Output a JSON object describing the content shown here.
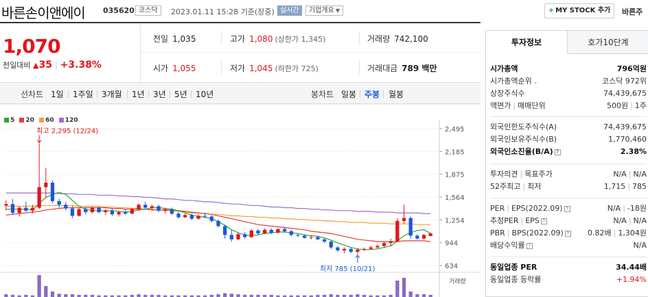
{
  "header": {
    "name": "바른손이앤에이",
    "code": "035620",
    "market": "코스닥",
    "datetime": "2023.01.11 15:28",
    "basis": "기준(장중)",
    "realtime": "실시간",
    "company_info": "기업개요",
    "mystock_button": "MY STOCK 추가",
    "cut_text": "바른주"
  },
  "price": {
    "current": "1,070",
    "diff_label": "전일대비",
    "diff_value": "35",
    "diff_rate": "+3.38%"
  },
  "quote": {
    "prev_label": "전일",
    "prev": "1,035",
    "high_label": "고가",
    "high": "1,080",
    "upper_limit": "(상한가 1,345)",
    "volume_label": "거래량",
    "volume": "742,100",
    "open_label": "시가",
    "open": "1,055",
    "low_label": "저가",
    "low": "1,045",
    "lower_limit": "(하한가 725)",
    "amount_label": "거래대금",
    "amount": "789 백만"
  },
  "chart_tabs": {
    "line_title": "선차트",
    "line_options": [
      "1일",
      "1주일",
      "3개월",
      "1년",
      "3년",
      "5년",
      "10년"
    ],
    "candle_title": "봉차트",
    "candle_options": [
      "일봉",
      "주봉",
      "월봉"
    ],
    "selected_candle": "주봉"
  },
  "side": {
    "tab_active": "투자정보",
    "tab_inactive": "호가10단계",
    "market_cap_label": "시가총액",
    "market_cap": "796억원",
    "cap_rank_label": "시가총액순위",
    "cap_rank": "코스닥 972위",
    "shares_label": "상장주식수",
    "shares": "74,439,675",
    "par_label": "액면가",
    "unit_label": "매매단위",
    "par": "500원",
    "unit": "1주",
    "foreign_limit_label": "외국인한도주식수(A)",
    "foreign_limit": "74,439,675",
    "foreign_hold_label": "외국인보유주식수(B)",
    "foreign_hold": "1,770,460",
    "foreign_rate_label": "외국인소진율(B/A)",
    "foreign_rate": "2.38%",
    "opinion_label": "투자의견",
    "target_label": "목표주가",
    "opinion": "N/A",
    "target": "N/A",
    "w52_label": "52주최고",
    "w52_low_label": "최저",
    "w52_high": "1,715",
    "w52_low": "785",
    "per_label": "PER",
    "eps_label": "EPS(2022.09)",
    "per": "N/A",
    "eps": "-18원",
    "est_per_label": "추정PER",
    "est_eps_label": "EPS",
    "est_per": "N/A",
    "est_eps": "N/A",
    "pbr_label": "PBR",
    "bps_label": "BPS(2022.09)",
    "pbr": "0.82배",
    "bps": "1,304원",
    "div_label": "배당수익률",
    "div": "N/A",
    "ind_per_label": "동일업종 PER",
    "ind_per": "34.44배",
    "ind_rate_label": "동일업종 등락률",
    "ind_rate": "+1.94%"
  },
  "colors": {
    "up": "#e0161c",
    "down": "#1a5ad8",
    "ma5": "#2fa52f",
    "ma20": "#e33b3b",
    "ma60": "#f0a33c",
    "ma120": "#9a6fd1"
  },
  "chart_data": {
    "type": "candlestick",
    "period": "weekly",
    "legend": [
      "5",
      "20",
      "60",
      "120"
    ],
    "y_ticks": [
      "2,495",
      "2,185",
      "1,875",
      "1,564",
      "1,254",
      "944",
      "634"
    ],
    "ylim": [
      634,
      2495
    ],
    "annotations": {
      "high": "최고 2,295 (12/24)",
      "low": "최저 785 (10/21)"
    },
    "volume_label": "거래량",
    "candles": [
      [
        1450,
        1520,
        1380,
        1470
      ],
      [
        1470,
        1540,
        1320,
        1350
      ],
      [
        1350,
        1440,
        1300,
        1420
      ],
      [
        1420,
        1500,
        1360,
        1380
      ],
      [
        1380,
        1460,
        1340,
        1420
      ],
      [
        1420,
        2295,
        1400,
        1700
      ],
      [
        1700,
        1960,
        1560,
        1760
      ],
      [
        1760,
        1790,
        1480,
        1510
      ],
      [
        1510,
        1540,
        1420,
        1460
      ],
      [
        1460,
        1500,
        1380,
        1410
      ],
      [
        1410,
        1450,
        1280,
        1310
      ],
      [
        1310,
        1420,
        1300,
        1400
      ],
      [
        1400,
        1430,
        1330,
        1360
      ],
      [
        1360,
        1440,
        1340,
        1420
      ],
      [
        1420,
        1440,
        1340,
        1360
      ],
      [
        1360,
        1400,
        1320,
        1380
      ],
      [
        1380,
        1410,
        1310,
        1330
      ],
      [
        1330,
        1380,
        1300,
        1360
      ],
      [
        1360,
        1400,
        1320,
        1340
      ],
      [
        1340,
        1420,
        1330,
        1400
      ],
      [
        1400,
        1480,
        1380,
        1460
      ],
      [
        1460,
        1500,
        1400,
        1420
      ],
      [
        1420,
        1460,
        1380,
        1440
      ],
      [
        1440,
        1460,
        1360,
        1380
      ],
      [
        1380,
        1420,
        1340,
        1400
      ],
      [
        1400,
        1420,
        1320,
        1340
      ],
      [
        1340,
        1360,
        1270,
        1290
      ],
      [
        1290,
        1340,
        1280,
        1320
      ],
      [
        1320,
        1340,
        1250,
        1270
      ],
      [
        1270,
        1330,
        1260,
        1310
      ],
      [
        1310,
        1350,
        1280,
        1300
      ],
      [
        1300,
        1320,
        1220,
        1240
      ],
      [
        1240,
        1260,
        1150,
        1170
      ],
      [
        1170,
        1190,
        1000,
        1050
      ],
      [
        1050,
        1120,
        960,
        990
      ],
      [
        990,
        1080,
        980,
        1060
      ],
      [
        1060,
        1090,
        1000,
        1020
      ],
      [
        1020,
        1130,
        1010,
        1110
      ],
      [
        1110,
        1130,
        1050,
        1070
      ],
      [
        1070,
        1140,
        1060,
        1120
      ],
      [
        1120,
        1140,
        1060,
        1080
      ],
      [
        1080,
        1140,
        1070,
        1130
      ],
      [
        1130,
        1160,
        1080,
        1100
      ],
      [
        1100,
        1120,
        1030,
        1050
      ],
      [
        1050,
        1070,
        1020,
        1040
      ],
      [
        1040,
        1060,
        1000,
        1010
      ],
      [
        1010,
        1050,
        990,
        1020
      ],
      [
        1020,
        1040,
        980,
        990
      ],
      [
        990,
        1010,
        940,
        960
      ],
      [
        960,
        980,
        860,
        880
      ],
      [
        880,
        900,
        820,
        840
      ],
      [
        840,
        880,
        800,
        860
      ],
      [
        860,
        880,
        800,
        820
      ],
      [
        820,
        870,
        785,
        850
      ],
      [
        850,
        880,
        830,
        860
      ],
      [
        860,
        900,
        850,
        880
      ],
      [
        880,
        920,
        860,
        900
      ],
      [
        900,
        960,
        880,
        940
      ],
      [
        940,
        1000,
        900,
        960
      ],
      [
        960,
        1280,
        950,
        1240
      ],
      [
        1240,
        1460,
        1200,
        1280
      ],
      [
        1280,
        1300,
        1000,
        1040
      ],
      [
        1040,
        1060,
        990,
        1000
      ],
      [
        1000,
        1060,
        990,
        1050
      ],
      [
        1035,
        1080,
        1045,
        1070
      ]
    ],
    "ma5": [
      1400,
      1400,
      1400,
      1400,
      1390,
      1480,
      1560,
      1600,
      1630,
      1600,
      1520,
      1440,
      1400,
      1380,
      1380,
      1380,
      1380,
      1370,
      1360,
      1370,
      1390,
      1400,
      1420,
      1420,
      1410,
      1400,
      1380,
      1350,
      1320,
      1300,
      1290,
      1270,
      1230,
      1180,
      1120,
      1080,
      1050,
      1040,
      1050,
      1070,
      1080,
      1090,
      1090,
      1080,
      1070,
      1050,
      1040,
      1030,
      1010,
      980,
      940,
      910,
      880,
      860,
      850,
      850,
      860,
      880,
      900,
      970,
      1040,
      1080,
      1110,
      1120,
      1070
    ],
    "ma20": [
      1320,
      1330,
      1340,
      1350,
      1360,
      1370,
      1390,
      1400,
      1410,
      1420,
      1420,
      1420,
      1420,
      1420,
      1420,
      1420,
      1410,
      1410,
      1400,
      1400,
      1400,
      1400,
      1390,
      1390,
      1390,
      1390,
      1380,
      1370,
      1360,
      1350,
      1340,
      1330,
      1310,
      1290,
      1270,
      1250,
      1230,
      1210,
      1190,
      1180,
      1170,
      1160,
      1150,
      1140,
      1130,
      1120,
      1100,
      1090,
      1080,
      1070,
      1050,
      1030,
      1010,
      990,
      980,
      970,
      960,
      960,
      960,
      960,
      970,
      970,
      970,
      970,
      960
    ],
    "ma60": [
      1440,
      1440,
      1440,
      1440,
      1440,
      1450,
      1450,
      1450,
      1450,
      1450,
      1450,
      1440,
      1440,
      1440,
      1440,
      1430,
      1430,
      1420,
      1420,
      1410,
      1410,
      1400,
      1400,
      1390,
      1380,
      1380,
      1370,
      1360,
      1350,
      1350,
      1340,
      1330,
      1330,
      1320,
      1310,
      1310,
      1300,
      1300,
      1290,
      1290,
      1280,
      1280,
      1270,
      1270,
      1260,
      1260,
      1250,
      1250,
      1240,
      1240,
      1230,
      1230,
      1220,
      1220,
      1220,
      1210,
      1210,
      1210,
      1200,
      1200,
      1200,
      1200,
      1190,
      1190,
      1190
    ],
    "ma120": [
      1620,
      1620,
      1620,
      1620,
      1620,
      1620,
      1620,
      1620,
      1610,
      1610,
      1610,
      1600,
      1600,
      1600,
      1590,
      1590,
      1590,
      1580,
      1580,
      1570,
      1570,
      1560,
      1560,
      1550,
      1540,
      1540,
      1530,
      1520,
      1520,
      1510,
      1500,
      1500,
      1490,
      1480,
      1470,
      1470,
      1460,
      1450,
      1450,
      1440,
      1430,
      1430,
      1420,
      1420,
      1410,
      1410,
      1400,
      1400,
      1390,
      1390,
      1380,
      1380,
      1380,
      1370,
      1370,
      1370,
      1360,
      1360,
      1360,
      1350,
      1350,
      1350,
      1350,
      1340,
      1340
    ],
    "volume": [
      10,
      8,
      6,
      8,
      6,
      80,
      40,
      20,
      12,
      10,
      10,
      8,
      8,
      8,
      6,
      6,
      6,
      6,
      6,
      8,
      10,
      8,
      8,
      8,
      6,
      6,
      6,
      6,
      6,
      6,
      6,
      8,
      10,
      14,
      12,
      10,
      8,
      8,
      8,
      8,
      8,
      6,
      6,
      6,
      6,
      6,
      6,
      8,
      8,
      10,
      8,
      8,
      8,
      10,
      8,
      6,
      6,
      6,
      8,
      60,
      70,
      20,
      10,
      10,
      8
    ]
  }
}
